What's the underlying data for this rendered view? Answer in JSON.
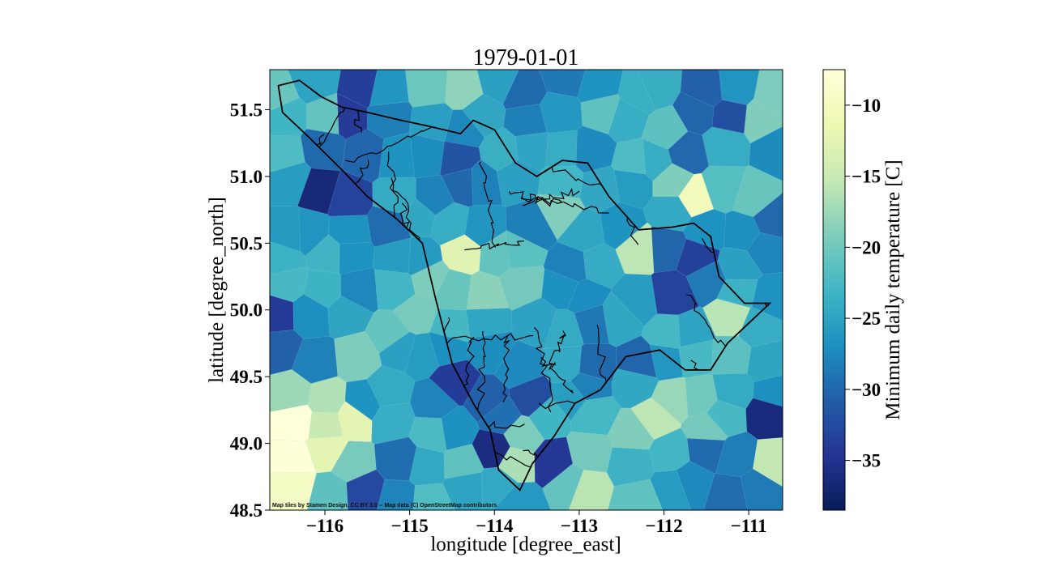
{
  "title": "1979-01-01",
  "attribution": "Map tiles by Stamen Design, CC BY 3.0 -- Map data (C) OpenStreetMap contributors",
  "map": {
    "xlabel": "longitude [degree_east]",
    "ylabel": "latitude [degree_north]",
    "xlim": [
      -116.65,
      -110.6
    ],
    "ylim": [
      48.5,
      51.8
    ],
    "xticks": [
      -116,
      -115,
      -114,
      -113,
      -112,
      -111
    ],
    "xtick_labels": [
      "−116",
      "−115",
      "−114",
      "−113",
      "−112",
      "−111"
    ],
    "yticks": [
      48.5,
      49.0,
      49.5,
      50.0,
      50.5,
      51.0,
      51.5
    ],
    "ytick_labels": [
      "48.5",
      "49.0",
      "49.5",
      "50.0",
      "50.5",
      "51.0",
      "51.5"
    ],
    "colormap": "YlGnBu_r",
    "overlay": "watershed sub-basin outlines"
  },
  "colorbar": {
    "label": "Minimum daily temperature [C]",
    "range": [
      -38.5,
      -7.5
    ],
    "ticks": [
      -10,
      -15,
      -20,
      -25,
      -30,
      -35
    ],
    "tick_labels": [
      "−10",
      "−15",
      "−20",
      "−25",
      "−30",
      "−35"
    ],
    "colors": [
      "#081d58",
      "#253494",
      "#225ea8",
      "#1d91c0",
      "#41b6c4",
      "#7fcdbb",
      "#c7e9b4",
      "#edf8b1",
      "#ffffd9"
    ]
  }
}
